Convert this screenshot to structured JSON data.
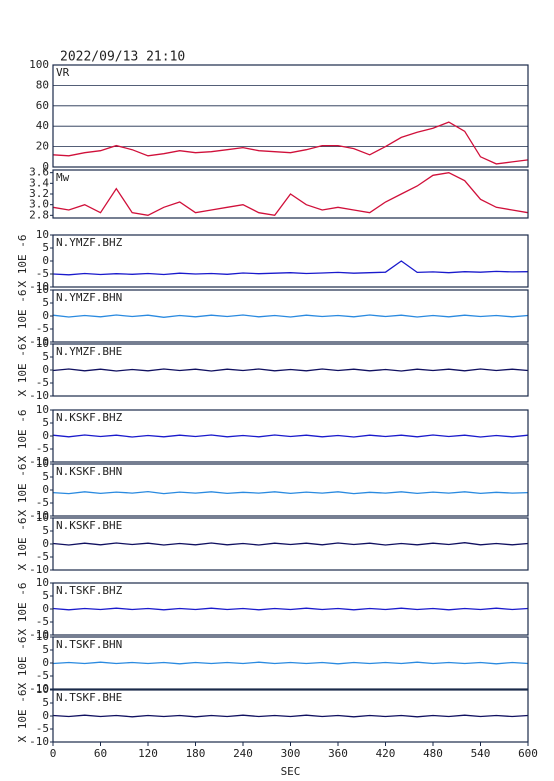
{
  "chart_data": [
    {
      "type": "line",
      "title": "2022/09/13 21:10",
      "label": "VR",
      "color": "#d0103a",
      "grid": true,
      "x": [
        0,
        20,
        40,
        60,
        80,
        100,
        120,
        140,
        160,
        180,
        200,
        220,
        240,
        260,
        280,
        300,
        320,
        340,
        360,
        380,
        400,
        420,
        440,
        460,
        480,
        500,
        520,
        540,
        560,
        580,
        600
      ],
      "values": [
        12,
        11,
        14,
        16,
        21,
        17,
        11,
        13,
        16,
        14,
        15,
        17,
        19,
        16,
        15,
        14,
        17,
        21,
        21,
        18,
        12,
        20,
        29,
        34,
        38,
        44,
        35,
        10,
        3,
        5,
        7
      ],
      "xlim": [
        0,
        600
      ],
      "ylim": [
        0,
        100
      ],
      "yticks": [
        0,
        20,
        40,
        60,
        80,
        100
      ]
    },
    {
      "type": "line",
      "label": "Mw",
      "color": "#d0103a",
      "grid": false,
      "x": [
        0,
        20,
        40,
        60,
        80,
        100,
        120,
        140,
        160,
        180,
        200,
        220,
        240,
        260,
        280,
        300,
        320,
        340,
        360,
        380,
        400,
        420,
        440,
        460,
        480,
        500,
        520,
        540,
        560,
        580,
        600
      ],
      "values": [
        2.95,
        2.9,
        3.0,
        2.85,
        3.3,
        2.85,
        2.8,
        2.95,
        3.05,
        2.85,
        2.9,
        2.95,
        3.0,
        2.85,
        2.8,
        3.2,
        3.0,
        2.9,
        2.95,
        2.9,
        2.85,
        3.05,
        3.2,
        3.35,
        3.55,
        3.6,
        3.45,
        3.1,
        2.95,
        2.9,
        2.85
      ],
      "xlim": [
        0,
        600
      ],
      "ylim": [
        2.75,
        3.65
      ],
      "yticks": [
        2.8,
        {
          "value": 3,
          "label": "3.0"
        },
        3.2,
        3.4,
        3.6
      ]
    },
    {
      "type": "line",
      "label": "N.YMZF.BHZ",
      "ylabel": "X 10E -6",
      "color": "#1a1acc",
      "x": [
        0,
        20,
        40,
        60,
        80,
        100,
        120,
        140,
        160,
        180,
        200,
        220,
        240,
        260,
        280,
        300,
        320,
        340,
        360,
        380,
        400,
        420,
        440,
        460,
        480,
        500,
        520,
        540,
        560,
        580,
        600
      ],
      "values": [
        -5,
        -5.3,
        -4.8,
        -5.2,
        -4.9,
        -5.1,
        -4.8,
        -5.2,
        -4.7,
        -5,
        -4.8,
        -5.1,
        -4.6,
        -4.9,
        -4.7,
        -4.5,
        -4.8,
        -4.6,
        -4.4,
        -4.7,
        -4.5,
        -4.3,
        0,
        -4.4,
        -4.2,
        -4.5,
        -4.1,
        -4.3,
        -4,
        -4.2,
        -4.1
      ],
      "xlim": [
        0,
        600
      ],
      "ylim": [
        -10,
        10
      ],
      "yticks": [
        -10,
        -5,
        0,
        5,
        10
      ]
    },
    {
      "type": "line",
      "label": "N.YMZF.BHN",
      "ylabel": "X 10E -6",
      "color": "#2a8ae0",
      "x": [
        0,
        20,
        40,
        60,
        80,
        100,
        120,
        140,
        160,
        180,
        200,
        220,
        240,
        260,
        280,
        300,
        320,
        340,
        360,
        380,
        400,
        420,
        440,
        460,
        480,
        500,
        520,
        540,
        560,
        580,
        600
      ],
      "values": [
        0.3,
        -0.4,
        0.2,
        -0.3,
        0.4,
        -0.2,
        0.3,
        -0.5,
        0.2,
        -0.3,
        0.3,
        -0.2,
        0.4,
        -0.3,
        0.2,
        -0.4,
        0.3,
        -0.2,
        0.2,
        -0.3,
        0.4,
        -0.2,
        0.3,
        -0.4,
        0.2,
        -0.3,
        0.3,
        -0.2,
        0.2,
        -0.3,
        0.2
      ],
      "xlim": [
        0,
        600
      ],
      "ylim": [
        -10,
        10
      ],
      "yticks": [
        -10,
        -5,
        0,
        5,
        10
      ]
    },
    {
      "type": "line",
      "label": "N.YMZF.BHE",
      "ylabel": "X 10E -6",
      "color": "#101060",
      "x": [
        0,
        20,
        40,
        60,
        80,
        100,
        120,
        140,
        160,
        180,
        200,
        220,
        240,
        260,
        280,
        300,
        320,
        340,
        360,
        380,
        400,
        420,
        440,
        460,
        480,
        500,
        520,
        540,
        560,
        580,
        600
      ],
      "values": [
        -0.2,
        0.4,
        -0.3,
        0.3,
        -0.4,
        0.2,
        -0.3,
        0.4,
        -0.2,
        0.3,
        -0.4,
        0.3,
        -0.2,
        0.4,
        -0.3,
        0.2,
        -0.3,
        0.4,
        -0.2,
        0.3,
        -0.3,
        0.2,
        -0.4,
        0.3,
        -0.2,
        0.3,
        -0.3,
        0.4,
        -0.2,
        0.3,
        -0.2
      ],
      "xlim": [
        0,
        600
      ],
      "ylim": [
        -10,
        10
      ],
      "yticks": [
        -10,
        -5,
        0,
        5,
        10
      ]
    },
    {
      "type": "line",
      "label": "N.KSKF.BHZ",
      "ylabel": "X 10E -6",
      "color": "#1a1acc",
      "x": [
        0,
        20,
        40,
        60,
        80,
        100,
        120,
        140,
        160,
        180,
        200,
        220,
        240,
        260,
        280,
        300,
        320,
        340,
        360,
        380,
        400,
        420,
        440,
        460,
        480,
        500,
        520,
        540,
        560,
        580,
        600
      ],
      "values": [
        0.3,
        -0.3,
        0.4,
        -0.2,
        0.3,
        -0.4,
        0.2,
        -0.3,
        0.3,
        -0.2,
        0.4,
        -0.3,
        0.2,
        -0.3,
        0.4,
        -0.2,
        0.3,
        -0.3,
        0.2,
        -0.4,
        0.3,
        -0.2,
        0.3,
        -0.3,
        0.4,
        -0.2,
        0.3,
        -0.4,
        0.2,
        -0.3,
        0.3
      ],
      "xlim": [
        0,
        600
      ],
      "ylim": [
        -10,
        10
      ],
      "yticks": [
        -10,
        -5,
        0,
        5,
        10
      ]
    },
    {
      "type": "line",
      "label": "N.KSKF.BHN",
      "ylabel": "X 10E -6",
      "color": "#2a8ae0",
      "x": [
        0,
        20,
        40,
        60,
        80,
        100,
        120,
        140,
        160,
        180,
        200,
        220,
        240,
        260,
        280,
        300,
        320,
        340,
        360,
        380,
        400,
        420,
        440,
        460,
        480,
        500,
        520,
        540,
        560,
        580,
        600
      ],
      "values": [
        -1,
        -1.4,
        -0.7,
        -1.3,
        -0.8,
        -1.2,
        -0.6,
        -1.4,
        -0.8,
        -1.2,
        -0.7,
        -1.3,
        -0.9,
        -1.2,
        -0.7,
        -1.3,
        -0.8,
        -1.2,
        -0.7,
        -1.4,
        -0.9,
        -1.2,
        -0.7,
        -1.3,
        -0.8,
        -1.2,
        -0.7,
        -1.3,
        -0.9,
        -1.2,
        -1
      ],
      "xlim": [
        0,
        600
      ],
      "ylim": [
        -10,
        10
      ],
      "yticks": [
        -10,
        -5,
        0,
        5,
        10
      ]
    },
    {
      "type": "line",
      "label": "N.KSKF.BHE",
      "ylabel": "X 10E -6",
      "color": "#101060",
      "x": [
        0,
        20,
        40,
        60,
        80,
        100,
        120,
        140,
        160,
        180,
        200,
        220,
        240,
        260,
        280,
        300,
        320,
        340,
        360,
        380,
        400,
        420,
        440,
        460,
        480,
        500,
        520,
        540,
        560,
        580,
        600
      ],
      "values": [
        0.2,
        -0.4,
        0.3,
        -0.3,
        0.4,
        -0.2,
        0.3,
        -0.4,
        0.2,
        -0.3,
        0.4,
        -0.3,
        0.2,
        -0.4,
        0.3,
        -0.2,
        0.3,
        -0.3,
        0.4,
        -0.2,
        0.3,
        -0.4,
        0.2,
        -0.3,
        0.3,
        -0.2,
        0.5,
        -0.3,
        0.2,
        -0.3,
        0.2
      ],
      "xlim": [
        0,
        600
      ],
      "ylim": [
        -10,
        10
      ],
      "yticks": [
        -10,
        -5,
        0,
        5,
        10
      ]
    },
    {
      "type": "line",
      "label": "N.TSKF.BHZ",
      "ylabel": "X 10E -6",
      "color": "#1a1acc",
      "x": [
        0,
        20,
        40,
        60,
        80,
        100,
        120,
        140,
        160,
        180,
        200,
        220,
        240,
        260,
        280,
        300,
        320,
        340,
        360,
        380,
        400,
        420,
        440,
        460,
        480,
        500,
        520,
        540,
        560,
        580,
        600
      ],
      "values": [
        0.2,
        -0.3,
        0.2,
        -0.2,
        0.3,
        -0.2,
        0.2,
        -0.3,
        0.2,
        -0.2,
        0.3,
        -0.2,
        0.2,
        -0.3,
        0.2,
        -0.2,
        0.3,
        -0.2,
        0.2,
        -0.3,
        0.2,
        -0.2,
        0.3,
        -0.2,
        0.2,
        -0.3,
        0.2,
        -0.2,
        0.3,
        -0.2,
        0.2
      ],
      "xlim": [
        0,
        600
      ],
      "ylim": [
        -10,
        10
      ],
      "yticks": [
        -10,
        -5,
        0,
        5,
        10
      ]
    },
    {
      "type": "line",
      "label": "N.TSKF.BHN",
      "ylabel": "X 10E -6",
      "color": "#2a8ae0",
      "x": [
        0,
        20,
        40,
        60,
        80,
        100,
        120,
        140,
        160,
        180,
        200,
        220,
        240,
        260,
        280,
        300,
        320,
        340,
        360,
        380,
        400,
        420,
        440,
        460,
        480,
        500,
        520,
        540,
        560,
        580,
        600
      ],
      "values": [
        -0.2,
        0.2,
        -0.2,
        0.3,
        -0.2,
        0.2,
        -0.2,
        0.2,
        -0.3,
        0.2,
        -0.2,
        0.2,
        -0.2,
        0.3,
        -0.2,
        0.2,
        -0.2,
        0.2,
        -0.3,
        0.2,
        -0.2,
        0.2,
        -0.2,
        0.3,
        -0.2,
        0.2,
        -0.2,
        0.2,
        -0.3,
        0.2,
        -0.2
      ],
      "xlim": [
        0,
        600
      ],
      "ylim": [
        -10,
        10
      ],
      "yticks": [
        -10,
        -5,
        0,
        5,
        10
      ]
    },
    {
      "type": "line",
      "label": "N.TSKF.BHE",
      "ylabel": "X 10E -6",
      "color": "#101060",
      "xlabel": "SEC",
      "x": [
        0,
        20,
        40,
        60,
        80,
        100,
        120,
        140,
        160,
        180,
        200,
        220,
        240,
        260,
        280,
        300,
        320,
        340,
        360,
        380,
        400,
        420,
        440,
        460,
        480,
        500,
        520,
        540,
        560,
        580,
        600
      ],
      "values": [
        0.2,
        -0.2,
        0.3,
        -0.2,
        0.2,
        -0.3,
        0.2,
        -0.2,
        0.2,
        -0.3,
        0.2,
        -0.2,
        0.3,
        -0.2,
        0.2,
        -0.2,
        0.3,
        -0.2,
        0.2,
        -0.3,
        0.2,
        -0.2,
        0.2,
        -0.3,
        0.2,
        -0.2,
        0.3,
        -0.2,
        0.2,
        -0.2,
        0.2
      ],
      "xlim": [
        0,
        600
      ],
      "ylim": [
        -10,
        10
      ],
      "yticks": [
        -10,
        -5,
        0,
        5,
        10
      ],
      "xticks": [
        0,
        60,
        120,
        180,
        240,
        300,
        360,
        420,
        480,
        540,
        600
      ]
    }
  ]
}
